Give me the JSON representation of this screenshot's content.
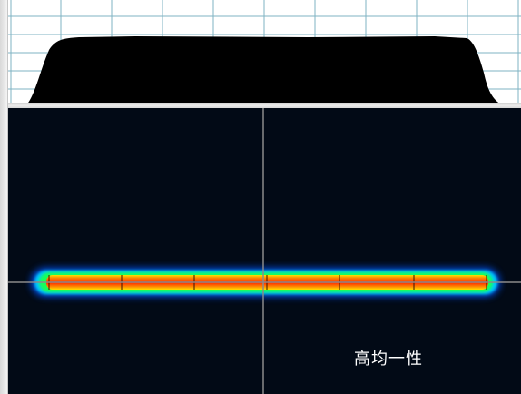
{
  "beam_view": {
    "caption": "高均一性"
  },
  "colors": {
    "grid": "#7fb3c3",
    "profile_fill": "#000000",
    "background_dark": "#020a16",
    "crosshair": "#8a8a8a",
    "beam_core": "#ff2a00",
    "beam_mid": "#ff9f00",
    "beam_edge": "#ffee00",
    "beam_outer": "#00ff6a",
    "beam_halo": "#0060ff"
  },
  "icons": [
    "crosshair",
    "profile-curve",
    "beam-spot"
  ]
}
